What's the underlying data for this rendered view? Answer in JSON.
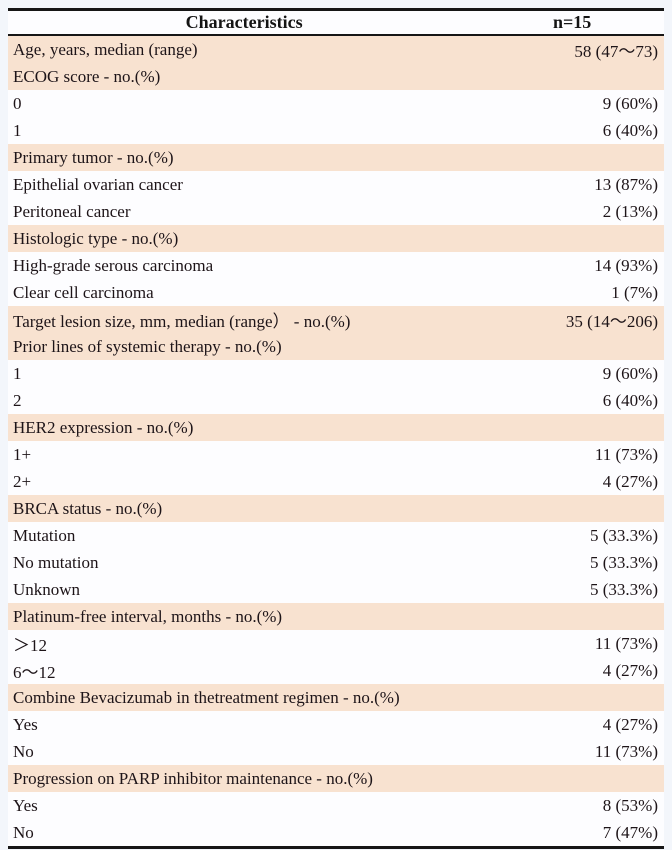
{
  "page": {
    "background": "#f3f6fb"
  },
  "table": {
    "header": {
      "characteristics_label": "Characteristics",
      "n_label": "n=15"
    },
    "colors": {
      "row_shaded": "#f8e2d0",
      "row_plain": "#fdfdff",
      "border": "#161616",
      "text": "#1d1418"
    },
    "rows": [
      {
        "label": "Age, years, median (range)",
        "value": "58 (47～73)",
        "shaded": true
      },
      {
        "label": "ECOG score - no.(%)",
        "value": "",
        "shaded": true
      },
      {
        "label": "0",
        "value": "9 (60%)",
        "shaded": false
      },
      {
        "label": "1",
        "value": "6 (40%)",
        "shaded": false
      },
      {
        "label": "Primary tumor  - no.(%)",
        "value": "",
        "shaded": true
      },
      {
        "label": "Epithelial ovarian cancer",
        "value": "13 (87%)",
        "shaded": false
      },
      {
        "label": "Peritoneal cancer",
        "value": "2 (13%)",
        "shaded": false
      },
      {
        "label": "Histologic type - no.(%)",
        "value": "",
        "shaded": true
      },
      {
        "label": "High-grade serous carcinoma",
        "value": "14 (93%)",
        "shaded": false
      },
      {
        "label": "Clear cell carcinoma",
        "value": "1 (7%)",
        "shaded": false
      },
      {
        "label": "Target lesion size, mm, median (range） - no.(%)",
        "value": "35 (14～206)",
        "shaded": true
      },
      {
        "label": "Prior lines of systemic therapy - no.(%)",
        "value": "",
        "shaded": true
      },
      {
        "label": "1",
        "value": "9 (60%)",
        "shaded": false
      },
      {
        "label": "2",
        "value": "6 (40%)",
        "shaded": false
      },
      {
        "label": "HER2 expression - no.(%)",
        "value": "",
        "shaded": true
      },
      {
        "label": "1+",
        "value": "11 (73%)",
        "shaded": false
      },
      {
        "label": "2+",
        "value": "4 (27%)",
        "shaded": false
      },
      {
        "label": "BRCA status - no.(%)",
        "value": "",
        "shaded": true
      },
      {
        "label": "Mutation",
        "value": "5 (33.3%)",
        "shaded": false
      },
      {
        "label": "No mutation",
        "value": "5 (33.3%)",
        "shaded": false
      },
      {
        "label": "Unknown",
        "value": "5 (33.3%)",
        "shaded": false
      },
      {
        "label": "Platinum-free interval, months - no.(%)",
        "value": "",
        "shaded": true
      },
      {
        "label": "＞12",
        "value": "11 (73%)",
        "shaded": false
      },
      {
        "label": "6～12",
        "value": "4 (27%)",
        "shaded": false
      },
      {
        "label": "Combine Bevacizumab in thetreatment regimen - no.(%)",
        "value": "",
        "shaded": true
      },
      {
        "label": "Yes",
        "value": "4 (27%)",
        "shaded": false
      },
      {
        "label": "No",
        "value": "11 (73%)",
        "shaded": false
      },
      {
        "label": "Progression on PARP inhibitor maintenance - no.(%)",
        "value": "",
        "shaded": true
      },
      {
        "label": "Yes",
        "value": "8 (53%)",
        "shaded": false
      },
      {
        "label": "No",
        "value": "7 (47%)",
        "shaded": false
      }
    ]
  }
}
